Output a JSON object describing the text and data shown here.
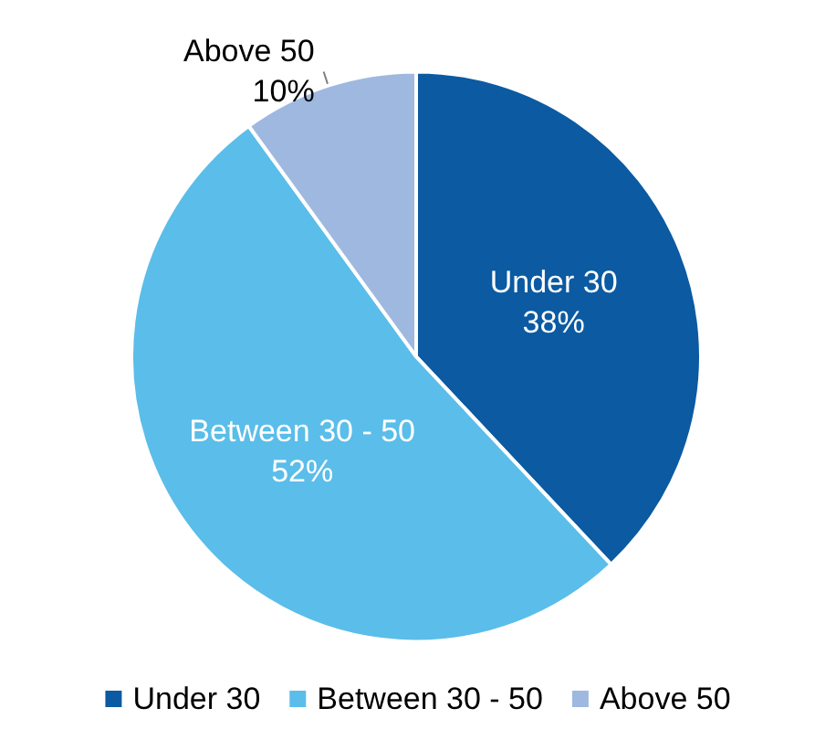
{
  "chart_data": {
    "type": "pie",
    "categories": [
      "Under 30",
      "Between 30 - 50",
      "Above 50"
    ],
    "values": [
      38,
      52,
      10
    ],
    "colors": [
      "#0b5aa2",
      "#5bbde9",
      "#9fb8e0"
    ],
    "value_labels": [
      "38%",
      "52%",
      "10%"
    ],
    "legend": "bottom"
  }
}
